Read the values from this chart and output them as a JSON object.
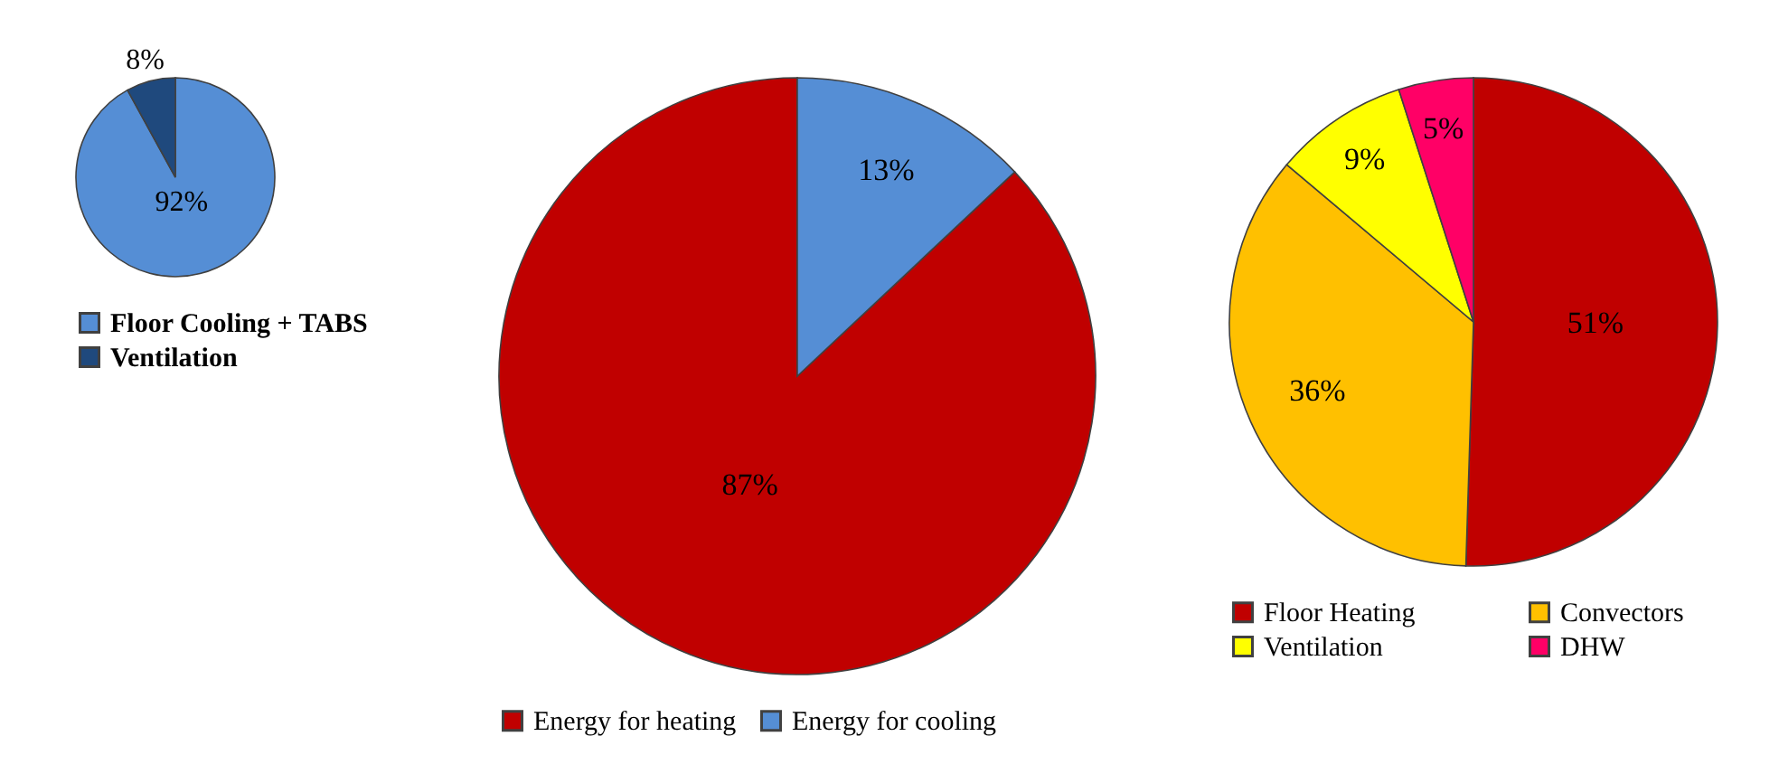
{
  "chart_data": [
    {
      "type": "pie",
      "categories": [
        "Floor Cooling + TABS",
        "Ventilation"
      ],
      "values": [
        92,
        8
      ],
      "colors": [
        "#558ed5",
        "#1f497d"
      ],
      "value_labels": [
        "92%",
        "8%"
      ],
      "legend": "bottom"
    },
    {
      "type": "pie",
      "categories": [
        "Energy for heating",
        "Energy for cooling"
      ],
      "values": [
        87,
        13
      ],
      "colors": [
        "#c00000",
        "#558ed5"
      ],
      "value_labels": [
        "87%",
        "13%"
      ],
      "legend": "bottom"
    },
    {
      "type": "pie",
      "categories": [
        "Floor Heating",
        "Convectors",
        "Ventilation",
        "DHW"
      ],
      "values": [
        51,
        36,
        9,
        5
      ],
      "colors": [
        "#c00000",
        "#ffc000",
        "#ffff00",
        "#ff0066"
      ],
      "value_labels": [
        "51%",
        "36%",
        "9%",
        "5%"
      ],
      "legend": "bottom"
    }
  ]
}
